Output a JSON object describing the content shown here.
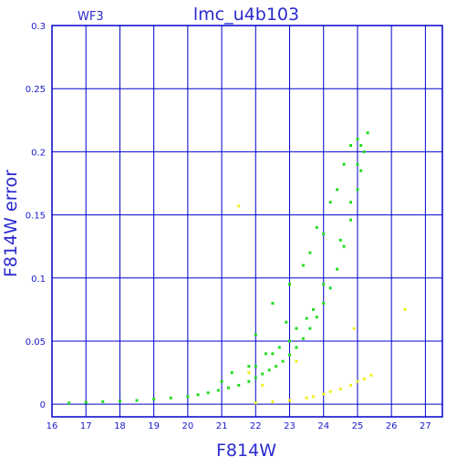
{
  "chart_data": {
    "type": "scatter",
    "title": "lmc_u4b103",
    "subtitle": "WF3",
    "xlabel": "F814W",
    "ylabel": "F814W error",
    "xlim": [
      16,
      27.5
    ],
    "ylim": [
      -0.01,
      0.3
    ],
    "xticks": [
      16,
      17,
      18,
      19,
      20,
      21,
      22,
      23,
      24,
      25,
      26,
      27
    ],
    "xtick_labels": [
      "16",
      "17",
      "18",
      "19",
      "20",
      "21",
      "22",
      "23",
      "24",
      "25",
      "26",
      "27"
    ],
    "yticks": [
      0,
      0.05,
      0.1,
      0.15,
      0.2,
      0.25,
      0.3
    ],
    "ytick_labels": [
      "0",
      "0.05",
      "0.1",
      "0.15",
      "0.2",
      "0.25",
      "0.3"
    ],
    "grid": true,
    "colors": {
      "frame": "#0000cc",
      "grid": "#0000cc",
      "green": "#22dd22",
      "yellow": "#f0f020",
      "text": "#2a2ad0"
    },
    "series": [
      {
        "color": "green",
        "points": [
          [
            16.5,
            0.001
          ],
          [
            17.0,
            0.0015
          ],
          [
            17.5,
            0.002
          ],
          [
            18.0,
            0.0025
          ],
          [
            18.5,
            0.003
          ],
          [
            19.0,
            0.004
          ],
          [
            19.5,
            0.005
          ],
          [
            20.0,
            0.006
          ],
          [
            20.3,
            0.0075
          ],
          [
            20.6,
            0.009
          ],
          [
            20.9,
            0.011
          ],
          [
            21.2,
            0.013
          ],
          [
            21.5,
            0.015
          ],
          [
            21.8,
            0.018
          ],
          [
            22.0,
            0.021
          ],
          [
            22.2,
            0.024
          ],
          [
            22.4,
            0.027
          ],
          [
            22.6,
            0.03
          ],
          [
            22.8,
            0.034
          ],
          [
            23.0,
            0.039
          ],
          [
            23.2,
            0.045
          ],
          [
            23.4,
            0.052
          ],
          [
            23.6,
            0.06
          ],
          [
            23.8,
            0.069
          ],
          [
            24.0,
            0.08
          ],
          [
            24.2,
            0.092
          ],
          [
            24.4,
            0.107
          ],
          [
            24.6,
            0.125
          ],
          [
            24.8,
            0.146
          ],
          [
            25.0,
            0.17
          ],
          [
            25.1,
            0.185
          ],
          [
            25.2,
            0.2
          ],
          [
            25.3,
            0.215
          ],
          [
            22.0,
            0.03
          ],
          [
            22.5,
            0.04
          ],
          [
            23.0,
            0.05
          ],
          [
            23.5,
            0.068
          ],
          [
            24.0,
            0.095
          ],
          [
            24.5,
            0.13
          ],
          [
            24.8,
            0.16
          ],
          [
            25.0,
            0.19
          ],
          [
            25.1,
            0.205
          ],
          [
            21.8,
            0.03
          ],
          [
            22.3,
            0.04
          ],
          [
            22.7,
            0.045
          ],
          [
            23.2,
            0.06
          ],
          [
            23.7,
            0.075
          ],
          [
            22.5,
            0.08
          ],
          [
            23.0,
            0.095
          ],
          [
            23.4,
            0.11
          ],
          [
            23.8,
            0.14
          ],
          [
            24.2,
            0.16
          ],
          [
            24.4,
            0.17
          ],
          [
            24.6,
            0.19
          ],
          [
            24.8,
            0.205
          ],
          [
            25.0,
            0.21
          ],
          [
            21.0,
            0.018
          ],
          [
            21.3,
            0.025
          ],
          [
            22.0,
            0.055
          ],
          [
            22.9,
            0.065
          ],
          [
            23.6,
            0.12
          ],
          [
            24.0,
            0.135
          ]
        ]
      },
      {
        "color": "yellow",
        "points": [
          [
            22.0,
            0.001
          ],
          [
            22.5,
            0.002
          ],
          [
            23.0,
            0.003
          ],
          [
            23.5,
            0.005
          ],
          [
            24.0,
            0.008
          ],
          [
            24.5,
            0.012
          ],
          [
            24.8,
            0.015
          ],
          [
            25.0,
            0.018
          ],
          [
            25.2,
            0.02
          ],
          [
            25.4,
            0.023
          ],
          [
            21.5,
            0.157
          ],
          [
            26.4,
            0.075
          ],
          [
            21.8,
            0.025
          ],
          [
            22.2,
            0.015
          ],
          [
            23.2,
            0.034
          ],
          [
            24.9,
            0.06
          ],
          [
            23.7,
            0.006
          ],
          [
            24.2,
            0.01
          ]
        ]
      }
    ]
  }
}
